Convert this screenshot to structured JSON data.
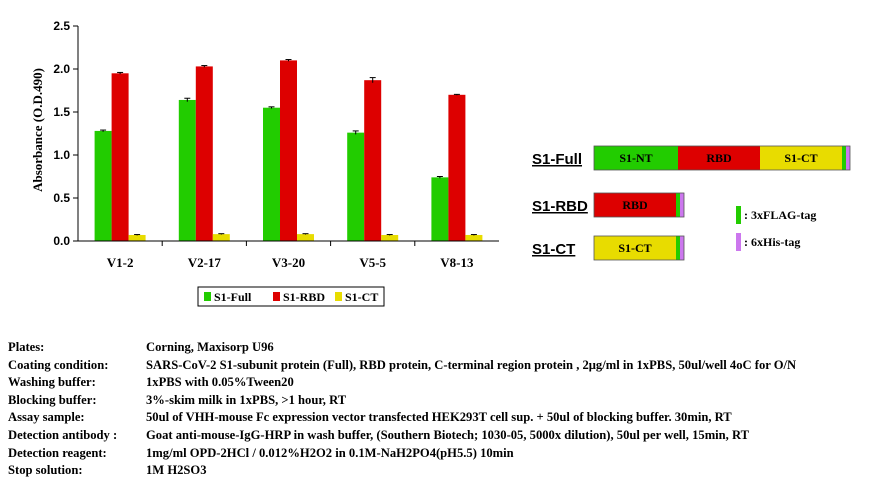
{
  "chart_data": {
    "type": "bar",
    "categories": [
      "V1-2",
      "V2-17",
      "V3-20",
      "V5-5",
      "V8-13"
    ],
    "series": [
      {
        "name": "S1-Full",
        "color": "#22cc00",
        "values": [
          1.28,
          1.64,
          1.55,
          1.26,
          0.74
        ],
        "errors": [
          0.01,
          0.02,
          0.01,
          0.02,
          0.01
        ]
      },
      {
        "name": "S1-RBD",
        "color": "#dd0000",
        "values": [
          1.95,
          2.03,
          2.1,
          1.87,
          1.7
        ],
        "errors": [
          0.01,
          0.01,
          0.01,
          0.03,
          0.005
        ]
      },
      {
        "name": "S1-CT",
        "color": "#e8dc00",
        "values": [
          0.07,
          0.08,
          0.08,
          0.07,
          0.07
        ],
        "errors": [
          0.005,
          0.005,
          0.005,
          0.005,
          0.005
        ]
      }
    ],
    "ylabel": "Absorbance (O.D.490)",
    "xlabel": "",
    "ylim": [
      0,
      2.5
    ],
    "yticks": [
      "0.0",
      "0.5",
      "1.0",
      "1.5",
      "2.0",
      "2.5"
    ],
    "grid": false,
    "legend": "bottom"
  },
  "constructs": [
    {
      "name": "S1-Full",
      "segments": [
        {
          "label": "S1-NT",
          "color": "#22cc00",
          "weight": 84
        },
        {
          "label": "RBD",
          "color": "#dd0000",
          "weight": 82
        },
        {
          "label": "S1-CT",
          "color": "#e8dc00",
          "weight": 82
        },
        {
          "label": "",
          "color": "#22cc00",
          "weight": 4
        },
        {
          "label": "",
          "color": "#cc77ee",
          "weight": 4
        }
      ]
    },
    {
      "name": "S1-RBD",
      "segments": [
        {
          "label": "RBD",
          "color": "#dd0000",
          "weight": 82
        },
        {
          "label": "",
          "color": "#22cc00",
          "weight": 4
        },
        {
          "label": "",
          "color": "#cc77ee",
          "weight": 4
        }
      ]
    },
    {
      "name": "S1-CT",
      "segments": [
        {
          "label": "S1-CT",
          "color": "#e8dc00",
          "weight": 82
        },
        {
          "label": "",
          "color": "#22cc00",
          "weight": 4
        },
        {
          "label": "",
          "color": "#cc77ee",
          "weight": 4
        }
      ]
    }
  ],
  "tag_key": [
    {
      "label": ": 3xFLAG-tag",
      "color": "#22cc00"
    },
    {
      "label": ": 6xHis-tag",
      "color": "#cc77ee"
    }
  ],
  "protocol": [
    {
      "key": "Plates:",
      "value": "Corning,  Maxisorp U96"
    },
    {
      "key": "Coating condition:",
      "value": "SARS-CoV-2 S1-subunit  protein (Full),  RBD protein, C-terminal  region protein , 2μg/ml  in 1xPBS, 50ul/well  4oC for O/N"
    },
    {
      "key": "Washing buffer:",
      "value": "1xPBS with  0.05%Tween20"
    },
    {
      "key": "Blocking buffer:",
      "value": "3%-skim milk  in 1xPBS, >1 hour,  RT"
    },
    {
      "key": "Assay sample:",
      "value": "50ul of  VHH-mouse  Fc expression vector transfected HEK293T  cell sup. + 50ul of blocking buffer.  30min,  RT"
    },
    {
      "key": "Detection antibody :",
      "value": "Goat anti-mouse-IgG-HRP  in wash buffer, (Southern Biotech;  1030-05,  5000x dilution),  50ul per well, 15min,  RT"
    },
    {
      "key": "Detection reagent:",
      "value": "1mg/ml  OPD-2HCl  / 0.012%H2O2 in 0.1M-NaH2PO4(pH5.5)  10min"
    },
    {
      "key": "Stop solution:",
      "value": "1M H2SO3"
    }
  ]
}
